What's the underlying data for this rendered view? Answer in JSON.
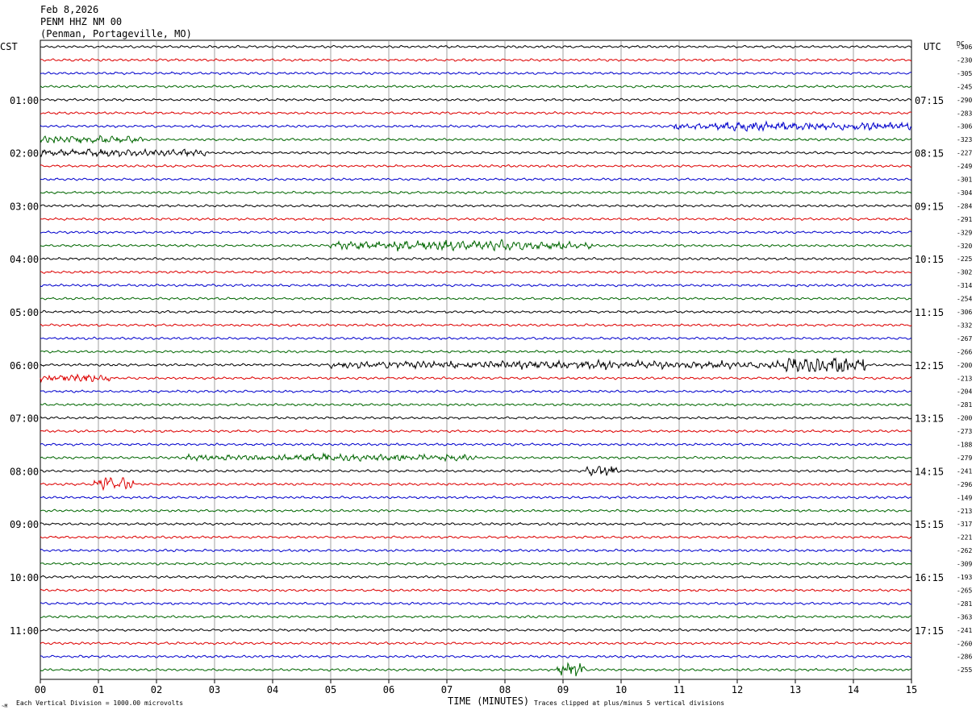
{
  "header": {
    "date": "Feb 8,2026",
    "station": "PENM HHZ NM 00",
    "location": "(Penman, Portageville, MO)"
  },
  "left_axis_title": "CST",
  "right_axis_title": "UTC",
  "dc_header": "DC",
  "footer": {
    "scale_note": "Each Vertical Division = 1000.00 microvolts",
    "clip_note": "Traces clipped at plus/minus 5 vertical divisions",
    "corner_mark": "~M"
  },
  "chart_data": {
    "type": "line",
    "xlabel": "TIME (MINUTES)",
    "x_ticks": [
      "00",
      "01",
      "02",
      "03",
      "04",
      "05",
      "06",
      "07",
      "08",
      "09",
      "10",
      "11",
      "12",
      "13",
      "14",
      "15"
    ],
    "xlim": [
      0,
      15
    ],
    "rows": 48,
    "trace_colors": [
      "#000000",
      "#dd0000",
      "#0000cc",
      "#006600"
    ],
    "left_hour_labels": [
      "01:00",
      "02:00",
      "03:00",
      "04:00",
      "05:00",
      "06:00",
      "07:00",
      "08:00",
      "09:00",
      "10:00",
      "11:00"
    ],
    "right_hour_labels": [
      "07:15",
      "08:15",
      "09:15",
      "10:15",
      "11:15",
      "12:15",
      "13:15",
      "14:15",
      "15:15",
      "16:15",
      "17:15"
    ],
    "hour_label_rows": [
      4,
      8,
      12,
      16,
      20,
      24,
      28,
      32,
      36,
      40,
      44
    ],
    "dc_offsets": [
      "-306",
      "-230",
      "-305",
      "-245",
      "-290",
      "-283",
      "-306",
      "-323",
      "-227",
      "-249",
      "-301",
      "-304",
      "-284",
      "-291",
      "-329",
      "-320",
      "-225",
      "-302",
      "-314",
      "-254",
      "-306",
      "-332",
      "-267",
      "-266",
      "-200",
      "-213",
      "-204",
      "-281",
      "-200",
      "-273",
      "-188",
      "-279",
      "-241",
      "-296",
      "-149",
      "-213",
      "-317",
      "-221",
      "-262",
      "-309",
      "-193",
      "-265",
      "-281",
      "-363",
      "-241",
      "-260",
      "-286",
      "-255"
    ],
    "events": [
      {
        "row": 6,
        "start": 10.9,
        "end": 15,
        "amp": 2.2
      },
      {
        "row": 7,
        "start": 0,
        "end": 1.8,
        "amp": 2.0
      },
      {
        "row": 8,
        "start": 0,
        "end": 2.9,
        "amp": 1.6
      },
      {
        "row": 15,
        "start": 5.0,
        "end": 9.5,
        "amp": 2.6
      },
      {
        "row": 24,
        "start": 5.0,
        "end": 13.0,
        "amp": 2.0
      },
      {
        "row": 24,
        "start": 12.8,
        "end": 14.2,
        "amp": 6.0
      },
      {
        "row": 25,
        "start": 0,
        "end": 1.2,
        "amp": 1.6
      },
      {
        "row": 31,
        "start": 2.5,
        "end": 7.5,
        "amp": 1.5
      },
      {
        "row": 32,
        "start": 9.4,
        "end": 10.0,
        "amp": 3.0
      },
      {
        "row": 33,
        "start": 0.9,
        "end": 1.6,
        "amp": 4.5
      },
      {
        "row": 47,
        "start": 8.9,
        "end": 9.4,
        "amp": 5.5
      }
    ]
  }
}
